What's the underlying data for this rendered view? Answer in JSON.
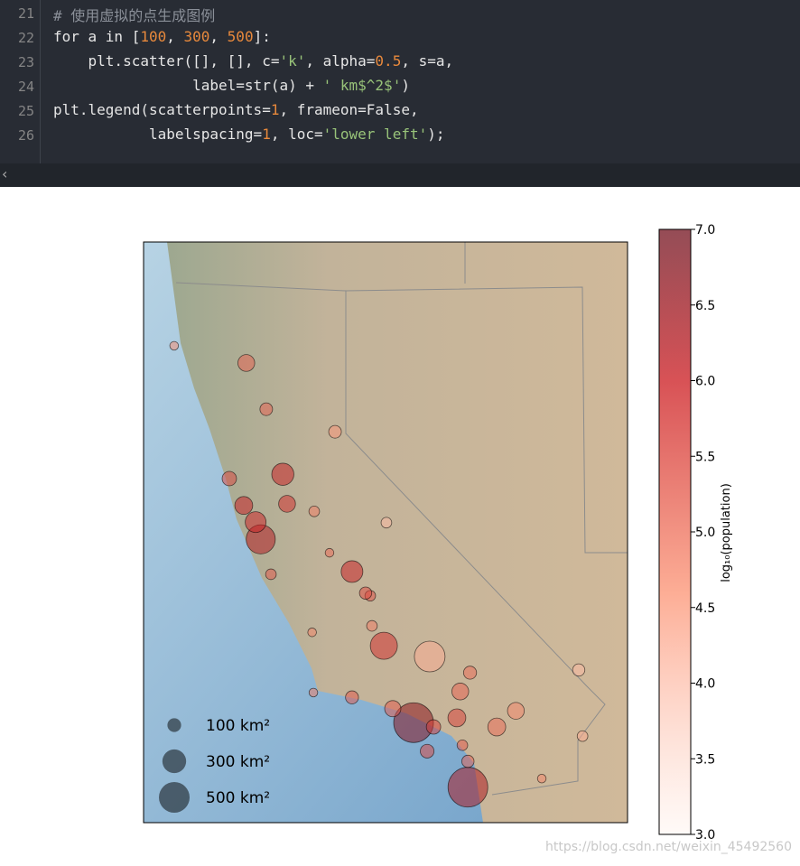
{
  "editor": {
    "lines": [
      {
        "number": 21,
        "text": "# 使用虚拟的点生成图例"
      },
      {
        "number": 22,
        "text": "for a in [100, 300, 500]:"
      },
      {
        "number": 23,
        "text": "    plt.scatter([], [], c='k', alpha=0.5, s=a,"
      },
      {
        "number": 24,
        "text": "                label=str(a) + ' km$^2$')"
      },
      {
        "number": 25,
        "text": "plt.legend(scatterpoints=1, frameon=False,"
      },
      {
        "number": 26,
        "text": "           labelspacing=1, loc='lower left');"
      }
    ]
  },
  "chart_data": {
    "type": "scatter",
    "xlim": [
      -124.7,
      -113.3
    ],
    "ylim": [
      32.1,
      42.9
    ],
    "x": [
      -118.34,
      -117.06,
      -121.94,
      -121.42,
      -117.96,
      -119.04,
      -119.79,
      -121.32,
      -122.28,
      -121.81,
      -120.19,
      -118.98,
      -114.45,
      -114.36,
      -117.24,
      -117.01,
      -115.93,
      -116.38,
      -117.32,
      -118.83,
      -119.79,
      -120.73,
      -120.7,
      -121.7,
      -122.34,
      -122.06,
      -122.68,
      -123.98,
      -119.36,
      -119.32,
      -115.32,
      -118.02,
      -117.06,
      -117.19,
      -117.87,
      -120.68,
      -120.32,
      -119.47
    ],
    "y": [
      33.96,
      32.76,
      37.37,
      38.58,
      35.19,
      35.39,
      36.77,
      38.03,
      40.65,
      39.79,
      39.37,
      37.68,
      34.94,
      33.71,
      34.54,
      34.89,
      34.18,
      33.88,
      34.05,
      34.22,
      34.43,
      35.64,
      34.52,
      36.72,
      38.0,
      37.69,
      38.5,
      40.97,
      36.32,
      35.76,
      32.92,
      33.43,
      33.24,
      33.54,
      33.88,
      37.89,
      37.12,
      36.37
    ],
    "values": [
      6.6,
      6.1,
      6.0,
      5.7,
      4.0,
      5.5,
      5.7,
      5.5,
      4.9,
      4.9,
      4.3,
      3.8,
      3.8,
      4.0,
      4.9,
      4.8,
      4.5,
      4.8,
      5.3,
      5.0,
      5.0,
      4.5,
      4.6,
      5.0,
      5.7,
      5.6,
      5.2,
      4.4,
      5.1,
      4.6,
      4.5,
      5.2,
      4.9,
      5.0,
      5.3,
      4.6,
      4.8,
      5.2
    ],
    "sizes": [
      840,
      840,
      450,
      260,
      500,
      390,
      250,
      150,
      150,
      85,
      85,
      60,
      80,
      60,
      150,
      90,
      150,
      170,
      170,
      140,
      90,
      40,
      40,
      60,
      170,
      230,
      110,
      40,
      60,
      60,
      40,
      100,
      80,
      60,
      110,
      60,
      40,
      80
    ],
    "colorbar": {
      "label": "log₁₀(population)",
      "lim": [
        3,
        7
      ],
      "ticks": [
        {
          "value": 3,
          "label": "3.0"
        },
        {
          "value": 3.5,
          "label": "3.5"
        },
        {
          "value": 4,
          "label": "4.0"
        },
        {
          "value": 4.5,
          "label": "4.5"
        },
        {
          "value": 5,
          "label": "5.0"
        },
        {
          "value": 5.5,
          "label": "5.5"
        },
        {
          "value": 6,
          "label": "6.0"
        },
        {
          "value": 6.5,
          "label": "6.5"
        },
        {
          "value": 7,
          "label": "7.0"
        }
      ]
    },
    "legend": {
      "loc": "lower left",
      "color": "#000000",
      "alpha": 0.5,
      "entries": [
        {
          "size": 100,
          "label": "100 km²"
        },
        {
          "size": 300,
          "label": "300 km²"
        },
        {
          "size": 500,
          "label": "500 km²"
        }
      ]
    },
    "alpha": 0.5
  },
  "watermark": "https://blog.csdn.net/weixin_45492560"
}
